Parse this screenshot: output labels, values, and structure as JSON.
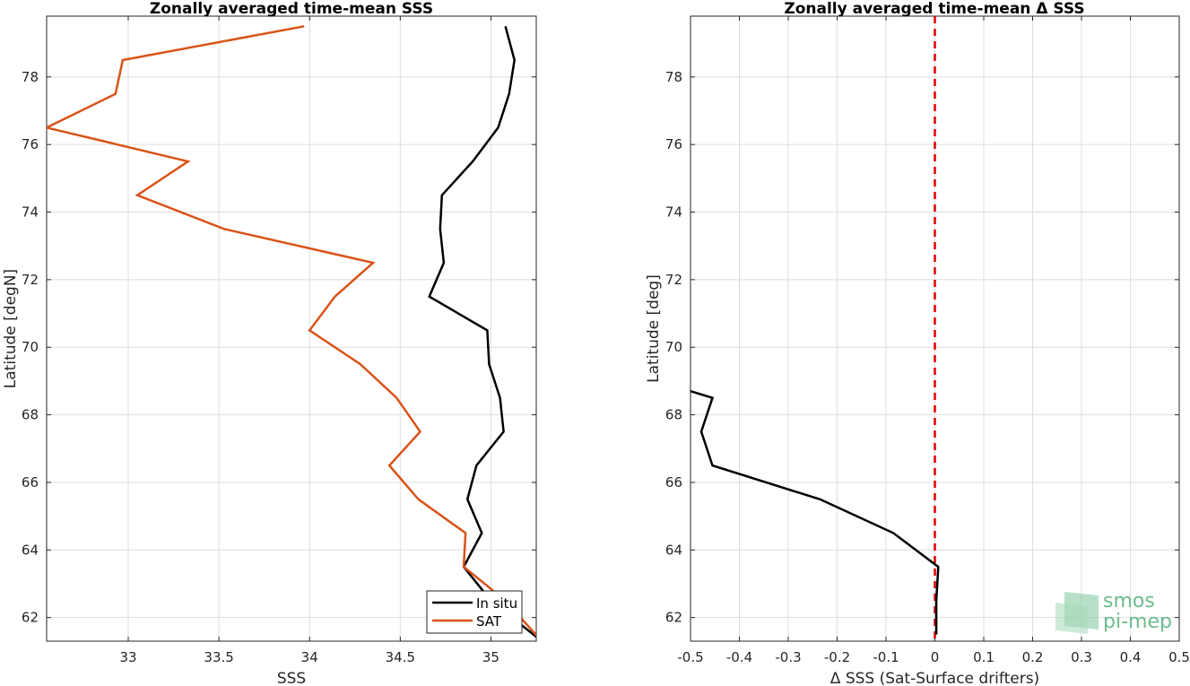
{
  "chart_data": [
    {
      "type": "line",
      "title": "Zonally averaged time-mean SSS",
      "xlabel": "SSS",
      "ylabel": "Latitude [degN]",
      "xlim": [
        32.55,
        35.25
      ],
      "ylim": [
        61.3,
        79.8
      ],
      "xticks": [
        33,
        33.5,
        34,
        34.5,
        35
      ],
      "xtick_labels": [
        "33",
        "33.5",
        "34",
        "34.5",
        "35"
      ],
      "yticks": [
        62,
        64,
        66,
        68,
        70,
        72,
        74,
        76,
        78
      ],
      "ytick_labels": [
        "62",
        "64",
        "66",
        "68",
        "70",
        "72",
        "74",
        "76",
        "78"
      ],
      "grid": true,
      "legend": "bottom-right",
      "series": [
        {
          "name": "In situ",
          "color": "#000000",
          "points": [
            [
              35.08,
              79.5
            ],
            [
              35.13,
              78.5
            ],
            [
              35.1,
              77.5
            ],
            [
              35.04,
              76.5
            ],
            [
              34.9,
              75.5
            ],
            [
              34.73,
              74.5
            ],
            [
              34.72,
              73.5
            ],
            [
              34.74,
              72.5
            ],
            [
              34.66,
              71.5
            ],
            [
              34.98,
              70.5
            ],
            [
              34.99,
              69.5
            ],
            [
              35.05,
              68.5
            ],
            [
              35.07,
              67.5
            ],
            [
              34.92,
              66.5
            ],
            [
              34.87,
              65.5
            ],
            [
              34.95,
              64.5
            ],
            [
              34.85,
              63.5
            ],
            [
              35.0,
              62.5
            ],
            [
              35.28,
              61.3
            ]
          ]
        },
        {
          "name": "SAT",
          "color": "#d95319",
          "points": [
            [
              33.97,
              79.5
            ],
            [
              32.97,
              78.5
            ],
            [
              32.93,
              77.5
            ],
            [
              32.55,
              76.5
            ],
            [
              33.33,
              75.5
            ],
            [
              33.05,
              74.5
            ],
            [
              33.53,
              73.5
            ],
            [
              34.35,
              72.5
            ],
            [
              34.14,
              71.5
            ],
            [
              34.0,
              70.5
            ],
            [
              34.28,
              69.5
            ],
            [
              34.48,
              68.5
            ],
            [
              34.61,
              67.5
            ],
            [
              34.44,
              66.5
            ],
            [
              34.6,
              65.5
            ],
            [
              34.86,
              64.5
            ],
            [
              34.85,
              63.5
            ],
            [
              35.08,
              62.5
            ],
            [
              35.28,
              61.3
            ]
          ]
        }
      ]
    },
    {
      "type": "line",
      "title": "Zonally averaged time-mean Δ SSS",
      "xlabel": "Δ SSS (Sat-Surface drifters)",
      "ylabel": "Latitude [deg]",
      "xlim": [
        -0.5,
        0.5
      ],
      "ylim": [
        61.3,
        79.8
      ],
      "xticks": [
        -0.5,
        -0.4,
        -0.3,
        -0.2,
        -0.1,
        0,
        0.1,
        0.2,
        0.3,
        0.4,
        0.5
      ],
      "xtick_labels": [
        "-0.5",
        "-0.4",
        "-0.3",
        "-0.2",
        "-0.1",
        "0",
        "0.1",
        "0.2",
        "0.3",
        "0.4",
        "0.5"
      ],
      "yticks": [
        62,
        64,
        66,
        68,
        70,
        72,
        74,
        76,
        78
      ],
      "ytick_labels": [
        "62",
        "64",
        "66",
        "68",
        "70",
        "72",
        "74",
        "76",
        "78"
      ],
      "grid": true,
      "zero_line": {
        "x": 0,
        "color": "#e00000",
        "style": "dashed"
      },
      "series": [
        {
          "color": "#000000",
          "points": [
            [
              -0.5,
              68.7
            ],
            [
              -0.455,
              68.5
            ],
            [
              -0.478,
              67.5
            ],
            [
              -0.455,
              66.5
            ],
            [
              -0.235,
              65.5
            ],
            [
              -0.085,
              64.5
            ],
            [
              0.007,
              63.5
            ],
            [
              0.003,
              62.5
            ],
            [
              0.003,
              61.5
            ]
          ]
        }
      ]
    }
  ],
  "watermark": {
    "line1": "smos",
    "line2": "pi-mep",
    "color": "#6dbb8e"
  }
}
